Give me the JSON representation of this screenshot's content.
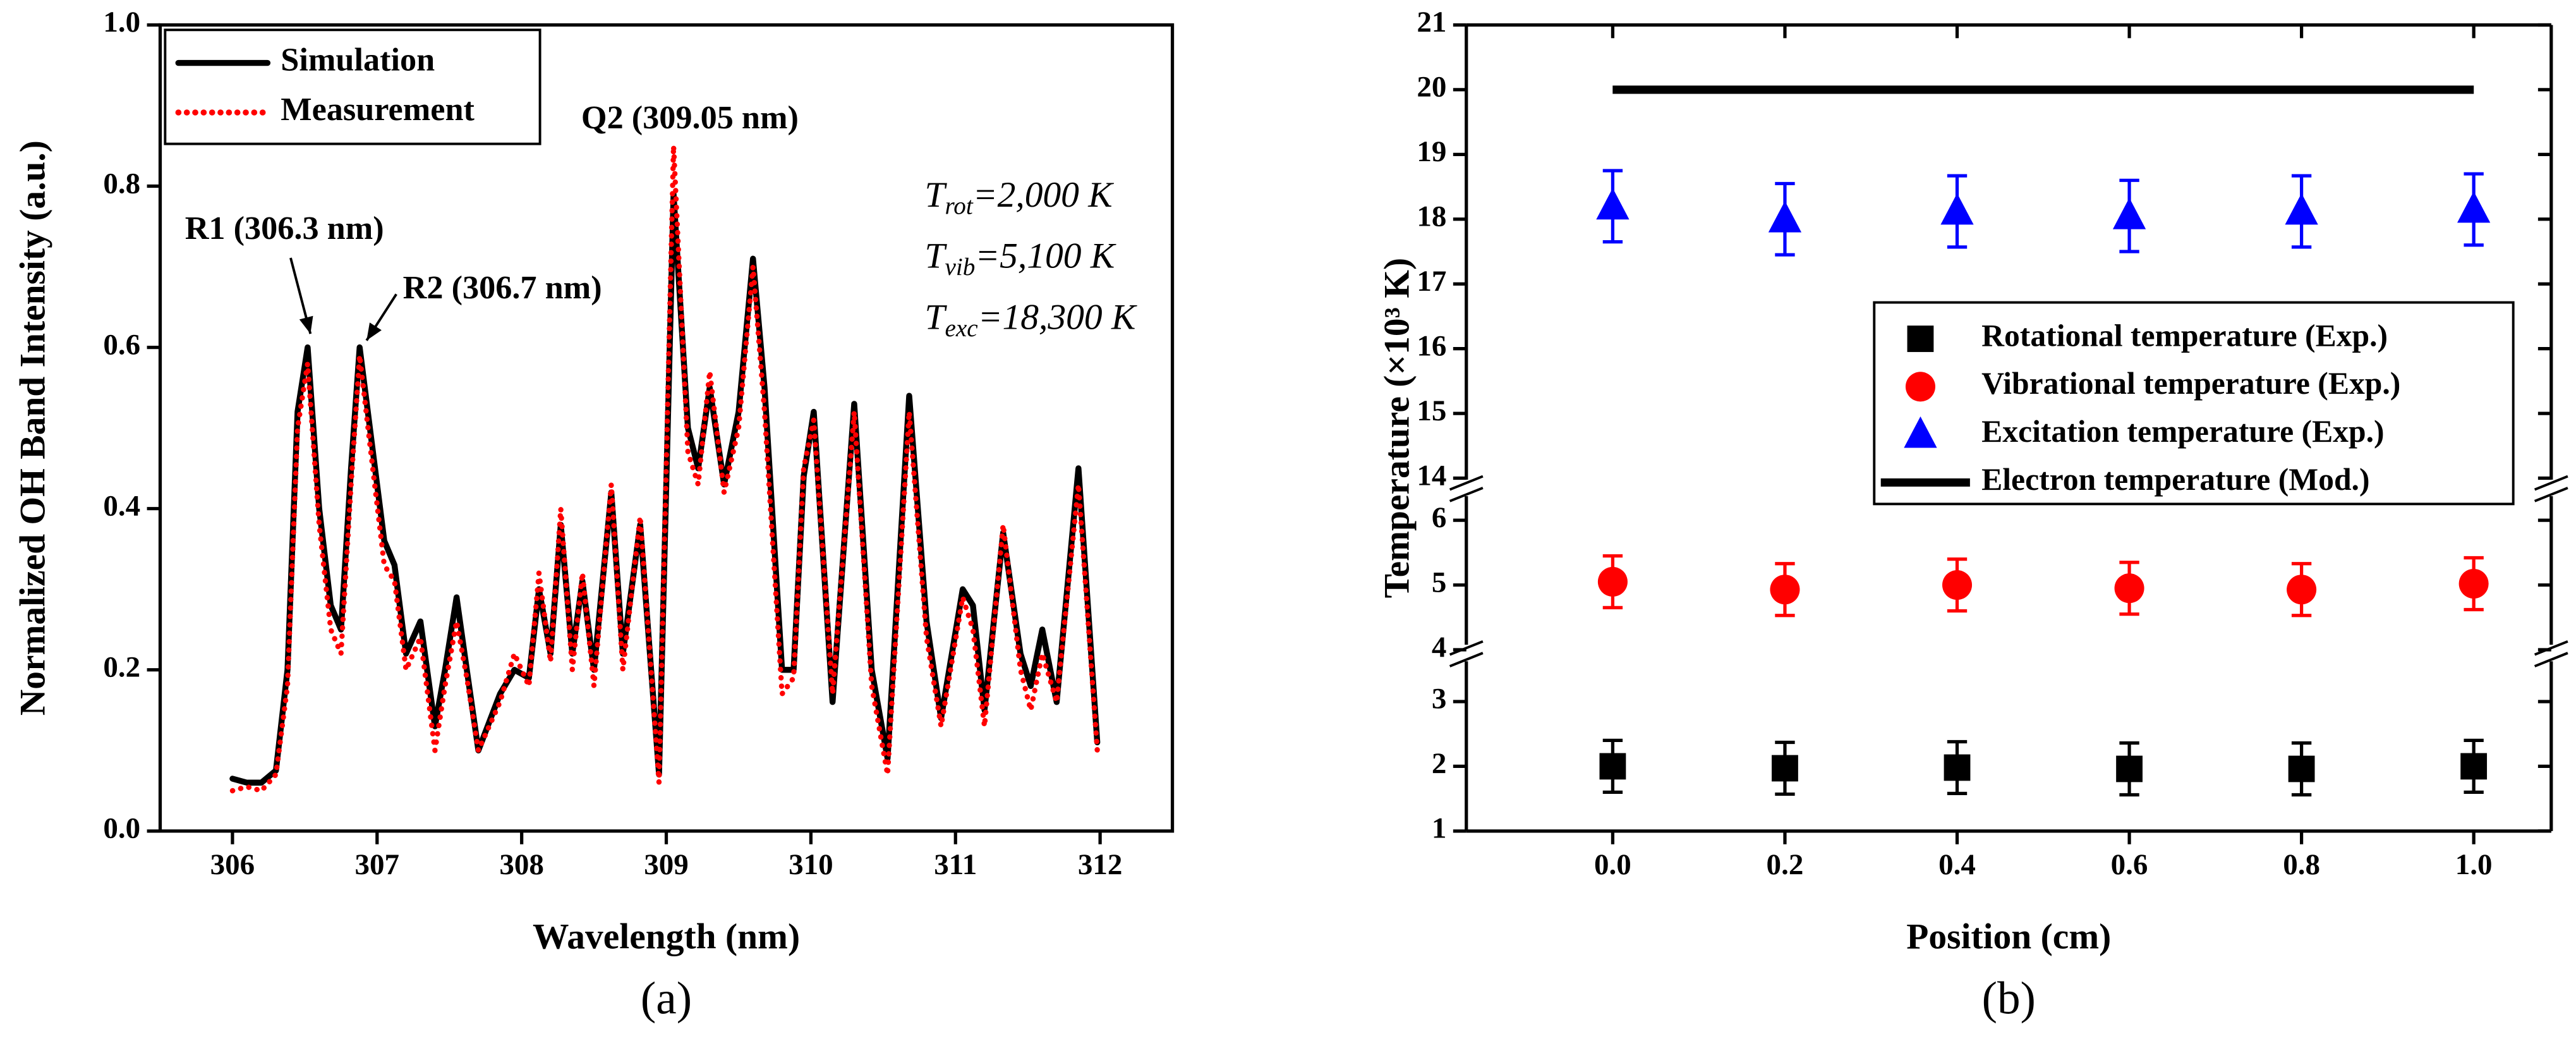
{
  "chart_data": [
    {
      "type": "line",
      "caption": "(a)",
      "x_label": "Wavelength (nm)",
      "y_label": "Normalized OH Band Intensity (a.u.)",
      "xlim": [
        305.5,
        312.5
      ],
      "xticks": [
        306,
        307,
        308,
        309,
        310,
        311,
        312
      ],
      "ylim": [
        0,
        1
      ],
      "yticks": [
        {
          "value": 0,
          "label": "0.0"
        },
        0.2,
        0.4,
        0.6,
        0.8,
        {
          "value": 1,
          "label": "1.0"
        }
      ],
      "legend": "upper left",
      "x": [
        306.0,
        306.1,
        306.2,
        306.3,
        306.38,
        306.45,
        306.52,
        306.6,
        306.68,
        306.75,
        306.82,
        306.88,
        306.95,
        307.05,
        307.12,
        307.2,
        307.3,
        307.4,
        307.47,
        307.55,
        307.62,
        307.7,
        307.85,
        307.95,
        308.05,
        308.12,
        308.2,
        308.27,
        308.35,
        308.42,
        308.5,
        308.62,
        308.7,
        308.82,
        308.95,
        309.05,
        309.15,
        309.22,
        309.3,
        309.4,
        309.5,
        309.6,
        309.68,
        309.8,
        309.88,
        309.95,
        310.02,
        310.15,
        310.3,
        310.42,
        310.53,
        310.68,
        310.8,
        310.9,
        311.05,
        311.12,
        311.2,
        311.33,
        311.45,
        311.52,
        311.6,
        311.7,
        311.85,
        311.98
      ],
      "series": [
        {
          "name": "Simulation",
          "color": "#000000",
          "style": "solid",
          "values": [
            0.065,
            0.06,
            0.06,
            0.075,
            0.2,
            0.52,
            0.6,
            0.4,
            0.28,
            0.25,
            0.45,
            0.6,
            0.5,
            0.36,
            0.33,
            0.22,
            0.26,
            0.13,
            0.2,
            0.29,
            0.2,
            0.1,
            0.17,
            0.2,
            0.19,
            0.3,
            0.22,
            0.38,
            0.22,
            0.31,
            0.2,
            0.42,
            0.22,
            0.38,
            0.07,
            0.79,
            0.5,
            0.45,
            0.55,
            0.43,
            0.52,
            0.71,
            0.55,
            0.2,
            0.2,
            0.44,
            0.52,
            0.16,
            0.53,
            0.2,
            0.09,
            0.54,
            0.26,
            0.14,
            0.3,
            0.28,
            0.15,
            0.37,
            0.22,
            0.18,
            0.25,
            0.16,
            0.45,
            0.11
          ]
        },
        {
          "name": "Measurement",
          "color": "#ff0000",
          "style": "dotted",
          "values": [
            0.05,
            0.055,
            0.05,
            0.07,
            0.18,
            0.5,
            0.58,
            0.38,
            0.25,
            0.22,
            0.43,
            0.59,
            0.48,
            0.33,
            0.31,
            0.2,
            0.24,
            0.1,
            0.18,
            0.26,
            0.19,
            0.1,
            0.16,
            0.22,
            0.18,
            0.32,
            0.21,
            0.4,
            0.2,
            0.32,
            0.18,
            0.43,
            0.2,
            0.39,
            0.06,
            0.85,
            0.47,
            0.43,
            0.57,
            0.42,
            0.5,
            0.7,
            0.52,
            0.17,
            0.19,
            0.45,
            0.51,
            0.17,
            0.52,
            0.18,
            0.07,
            0.52,
            0.24,
            0.13,
            0.29,
            0.25,
            0.13,
            0.38,
            0.2,
            0.15,
            0.22,
            0.16,
            0.43,
            0.1
          ]
        }
      ],
      "annotations": [
        "R1 (306.3 nm)",
        "R2 (306.7 nm)",
        "Q2 (309.05 nm)"
      ],
      "temperatures": [
        {
          "symbol": "T",
          "subscript": "rot",
          "text": "=2,000 K"
        },
        {
          "symbol": "T",
          "subscript": "vib",
          "text": "=5,100 K"
        },
        {
          "symbol": "T",
          "subscript": "exc",
          "text": "=18,300 K"
        }
      ]
    },
    {
      "type": "scatter",
      "caption": "(b)",
      "x_label": "Position (cm)",
      "y_label": "Temperature (×10³ K)",
      "xlim": [
        -0.17,
        1.09
      ],
      "xticks": [
        {
          "value": 0,
          "label": "0.0"
        },
        0.2,
        0.4,
        0.6,
        0.8,
        {
          "value": 1,
          "label": "1.0"
        }
      ],
      "y_segments": [
        {
          "ylim": [
            1,
            3.75
          ],
          "yticks": [
            1,
            2,
            3
          ]
        },
        {
          "ylim": [
            3.95,
            6.5
          ],
          "yticks": [
            4,
            5,
            6
          ]
        },
        {
          "ylim": [
            13.85,
            21
          ],
          "yticks": [
            14,
            15,
            16,
            17,
            18,
            19,
            20,
            21
          ]
        }
      ],
      "legend": "center right",
      "x": [
        0,
        0.2,
        0.4,
        0.6,
        0.8,
        1
      ],
      "series": [
        {
          "name": "Rotational temperature (Exp.)",
          "color": "#000000",
          "marker": "square",
          "values": [
            2.0,
            1.97,
            1.98,
            1.96,
            1.96,
            2.0
          ],
          "errors": [
            0.4,
            0.4,
            0.4,
            0.4,
            0.4,
            0.4
          ]
        },
        {
          "name": "Vibrational temperature (Exp.)",
          "color": "#ff0000",
          "marker": "circle",
          "values": [
            5.05,
            4.93,
            5.0,
            4.95,
            4.93,
            5.02
          ],
          "errors": [
            0.4,
            0.4,
            0.4,
            0.4,
            0.4,
            0.4
          ]
        },
        {
          "name": "Excitation temperature (Exp.)",
          "color": "#0000ff",
          "marker": "triangle",
          "values": [
            18.2,
            18.0,
            18.12,
            18.05,
            18.12,
            18.15
          ],
          "errors": [
            0.55,
            0.55,
            0.55,
            0.55,
            0.55,
            0.55
          ]
        },
        {
          "name": "Electron temperature (Mod.)",
          "color": "#000000",
          "marker": "line",
          "values": [
            20,
            20,
            20,
            20,
            20,
            20
          ]
        }
      ]
    }
  ]
}
